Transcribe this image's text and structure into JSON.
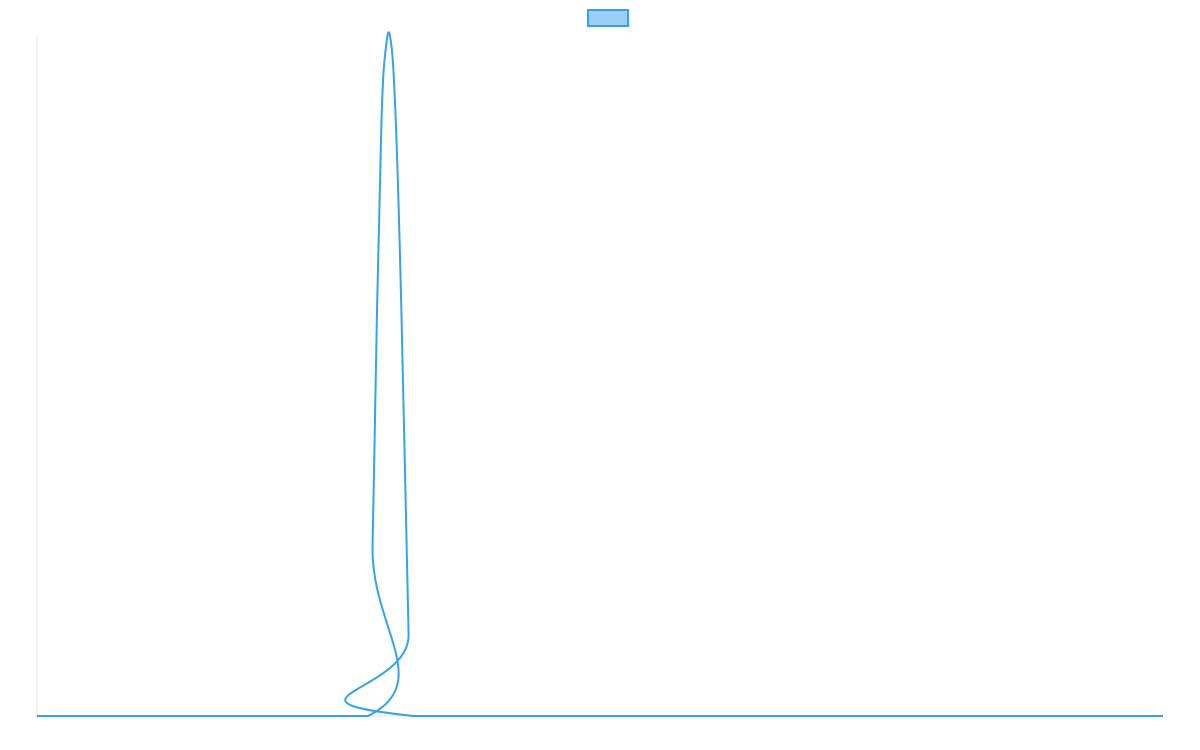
{
  "chart_data": {
    "type": "line",
    "title": "",
    "xlabel": "",
    "ylabel": "",
    "grid": false,
    "legend": {
      "placement": "top-center",
      "entries": [
        {
          "label": "",
          "color": "#36A2EB",
          "fill": "#9AD0F5"
        }
      ]
    },
    "xlim": [
      0,
      1
    ],
    "ylim": [
      0,
      1
    ],
    "series": [
      {
        "color": "#36A2EB",
        "x": [
          0.0,
          0.294,
          0.298,
          0.302,
          0.306,
          0.31,
          0.314,
          0.318,
          0.322,
          0.326,
          0.33,
          0.334,
          1.0
        ],
        "y": [
          0.0,
          0.0,
          0.25,
          0.6,
          0.88,
          0.985,
          0.995,
          0.9,
          0.7,
          0.42,
          0.12,
          0.0,
          0.0
        ]
      }
    ]
  }
}
